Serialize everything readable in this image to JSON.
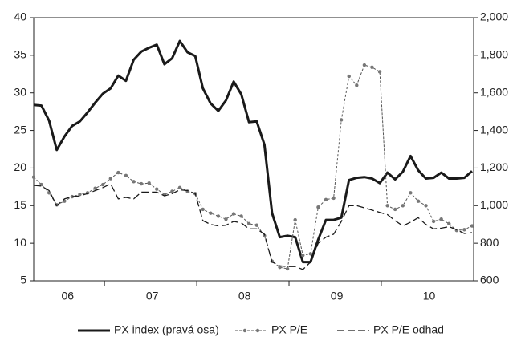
{
  "chart_data": {
    "type": "line",
    "categories": [
      null,
      null,
      null,
      null,
      "06",
      null,
      null,
      null,
      null,
      null,
      null,
      null,
      null,
      null,
      null,
      "07",
      null,
      null,
      null,
      null,
      null,
      null,
      null,
      null,
      null,
      null,
      null,
      "08",
      null,
      null,
      null,
      null,
      null,
      null,
      null,
      null,
      null,
      null,
      null,
      "09",
      null,
      null,
      null,
      null,
      null,
      null,
      null,
      null,
      null,
      null,
      null,
      "10",
      null,
      null,
      null,
      null,
      null,
      null
    ],
    "ylim": [
      5,
      40
    ],
    "yticks": [
      5,
      10,
      15,
      20,
      25,
      30,
      35,
      40
    ],
    "y2lim": [
      600,
      2000
    ],
    "y2ticks": [
      600,
      800,
      {
        "value": 1000,
        "label": "1,000"
      },
      {
        "value": 1200,
        "label": "1,200"
      },
      {
        "value": 1400,
        "label": "1,400"
      },
      {
        "value": 1600,
        "label": "1,600"
      },
      {
        "value": 1800,
        "label": "1,800"
      },
      {
        "value": 2000,
        "label": "2,000"
      }
    ],
    "series": [
      {
        "name": "PX index (pravá osa)",
        "color": "#1a1a1a",
        "axis": "y2",
        "line_style": "solid",
        "values": [
          1536,
          1532,
          1452,
          1296,
          1368,
          1424,
          1448,
          1496,
          1548,
          1596,
          1624,
          1692,
          1664,
          1776,
          1820,
          1840,
          1856,
          1752,
          1784,
          1876,
          1816,
          1796,
          1624,
          1544,
          1504,
          1560,
          1660,
          1592,
          1444,
          1448,
          1324,
          960,
          832,
          840,
          832,
          700,
          700,
          820,
          924,
          924,
          936,
          1136,
          1148,
          1152,
          1144,
          1120,
          1176,
          1140,
          1180,
          1264,
          1188,
          1144,
          1148,
          1176,
          1144,
          1144,
          1148,
          1184
        ]
      },
      {
        "name": "PX P/E",
        "color": "#555555",
        "line_style": "dotted",
        "markers": true,
        "values": [
          18.8,
          17.8,
          16.7,
          15.1,
          15.6,
          16.2,
          16.5,
          16.7,
          17.3,
          17.8,
          18.6,
          19.4,
          19.0,
          18.2,
          17.9,
          18.0,
          17.2,
          16.5,
          16.9,
          17.4,
          16.9,
          16.6,
          14.5,
          14.0,
          13.6,
          13.2,
          13.9,
          13.6,
          12.6,
          12.4,
          11.0,
          7.6,
          6.8,
          6.6,
          13.1,
          8.4,
          8.6,
          14.8,
          15.8,
          16.0,
          26.4,
          32.2,
          31.0,
          33.7,
          33.4,
          32.8,
          15.0,
          14.5,
          15.0,
          16.7,
          15.6,
          15.0,
          12.9,
          13.2,
          12.6,
          11.7,
          11.8,
          12.3
        ]
      },
      {
        "name": "PX P/E odhad",
        "color": "#1a1a1a",
        "line_style": "dashed",
        "values": [
          17.7,
          17.6,
          17.0,
          15.0,
          15.9,
          16.2,
          16.3,
          16.6,
          17.0,
          17.4,
          17.9,
          15.9,
          16.1,
          15.9,
          16.8,
          16.8,
          16.8,
          16.3,
          16.6,
          17.1,
          17.0,
          16.6,
          13.0,
          12.5,
          12.3,
          12.4,
          12.9,
          12.7,
          11.9,
          11.9,
          11.2,
          7.5,
          7.0,
          6.9,
          6.9,
          6.5,
          7.5,
          10.0,
          10.8,
          11.2,
          12.9,
          15.0,
          15.0,
          14.7,
          14.4,
          14.1,
          13.8,
          13.0,
          12.3,
          12.8,
          13.4,
          12.5,
          11.9,
          12.0,
          12.2,
          11.8,
          11.3,
          11.4
        ]
      }
    ],
    "legend": "bottom"
  }
}
